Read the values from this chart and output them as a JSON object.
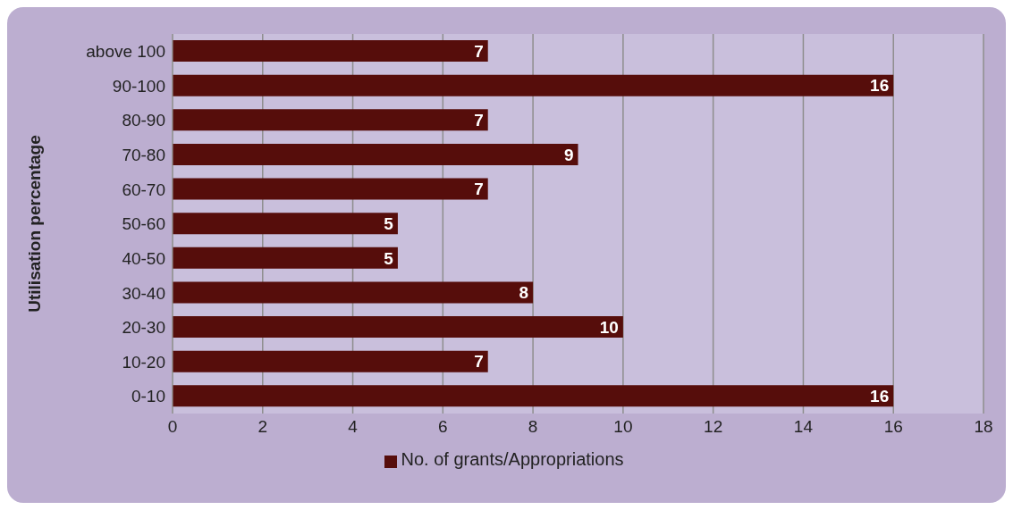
{
  "chart_data": {
    "type": "bar",
    "orientation": "horizontal",
    "ylabel": "Utilisation percentage",
    "categories": [
      "above 100",
      "90-100",
      "80-90",
      "70-80",
      "60-70",
      "50-60",
      "40-50",
      "30-40",
      "20-30",
      "10-20",
      "0-10"
    ],
    "series": [
      {
        "name": "No. of grants/Appropriations",
        "color": "#560d0b",
        "values": [
          7,
          16,
          7,
          9,
          7,
          5,
          5,
          8,
          10,
          7,
          16
        ]
      }
    ],
    "xlim": [
      0,
      18
    ],
    "xticks": [
      0,
      2,
      4,
      6,
      8,
      10,
      12,
      14,
      16,
      18
    ],
    "grid": "x",
    "legend": "bottom",
    "data_labels": true
  }
}
